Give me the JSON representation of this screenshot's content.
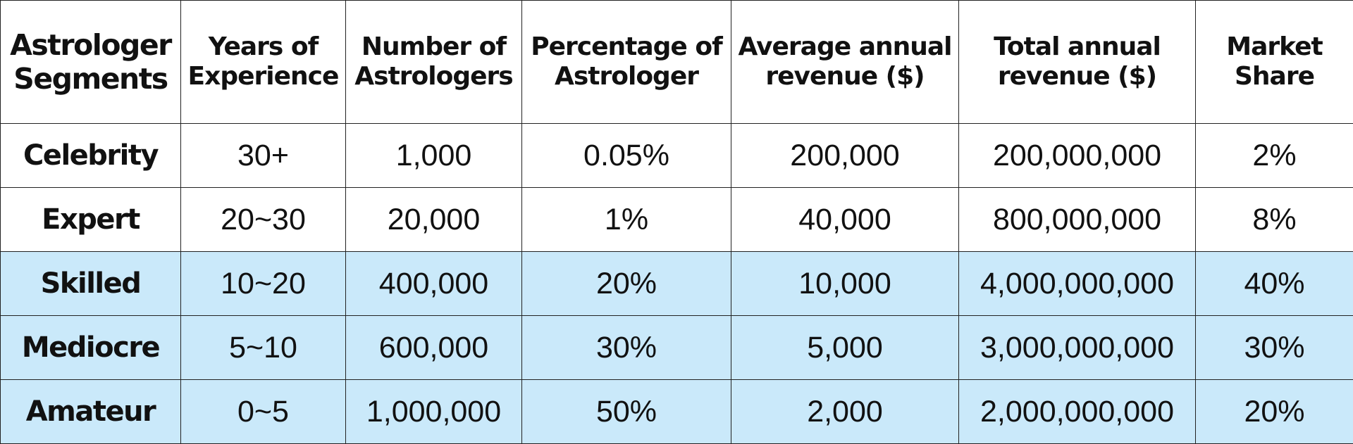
{
  "chart_data": {
    "type": "table",
    "columns": [
      "Astrologer Segments",
      "Years of Experience",
      "Number of Astrologers",
      "Percentage of Astrologer",
      "Average annual revenue ($)",
      "Total annual revenue ($)",
      "Market Share"
    ],
    "rows": [
      [
        "Celebrity",
        "30+",
        "1,000",
        "0.05%",
        "200,000",
        "200,000,000",
        "2%"
      ],
      [
        "Expert",
        "20~30",
        "20,000",
        "1%",
        "40,000",
        "800,000,000",
        "8%"
      ],
      [
        "Skilled",
        "10~20",
        "400,000",
        "20%",
        "10,000",
        "4,000,000,000",
        "40%"
      ],
      [
        "Mediocre",
        "5~10",
        "600,000",
        "30%",
        "5,000",
        "3,000,000,000",
        "30%"
      ],
      [
        "Amateur",
        "0~5",
        "1,000,000",
        "50%",
        "2,000",
        "2,000,000,000",
        "20%"
      ]
    ],
    "row_fill": [
      "white",
      "white",
      "blue",
      "blue",
      "blue"
    ],
    "colors": {
      "highlight_fill": "#cae9fa",
      "plain_fill": "#ffffff",
      "border": "#222222",
      "text": "#111111"
    }
  }
}
